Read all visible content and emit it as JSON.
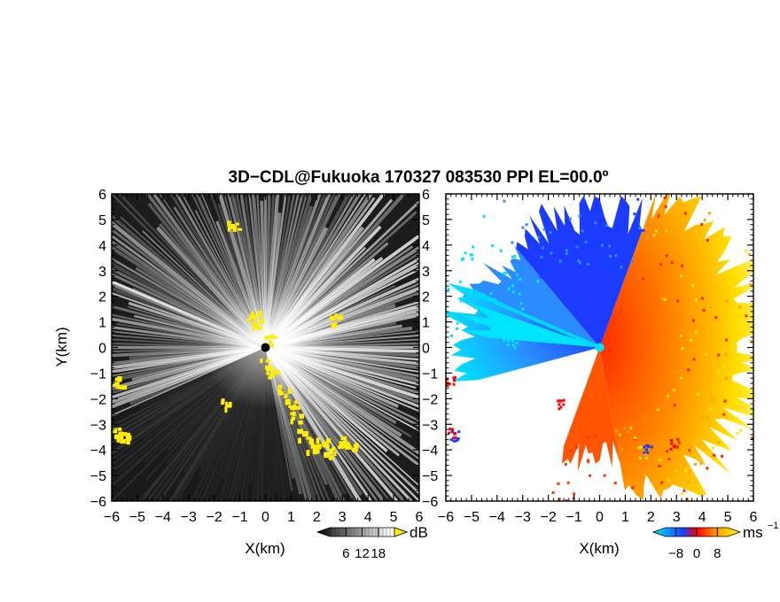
{
  "chart_data": {
    "type": "heatmap",
    "title": "3D−CDL@Fukuoka 170327 083530 PPI EL=00.0º",
    "panels": [
      {
        "id": "reflectivity",
        "xlabel": "X(km)",
        "ylabel": "Y(km)",
        "xlim": [
          -6,
          6
        ],
        "ylim": [
          -6,
          6
        ],
        "xticks": [
          "−6",
          "−5",
          "−4",
          "−3",
          "−2",
          "−1",
          "0",
          "1",
          "2",
          "3",
          "4",
          "5",
          "6"
        ],
        "yticks": [
          "6",
          "5",
          "4",
          "3",
          "2",
          "1",
          "0",
          "−1",
          "−2",
          "−3",
          "−4",
          "−5",
          "−6"
        ],
        "colorbar": {
          "unit": "dB",
          "ticks": [
            "6",
            "12",
            "18"
          ],
          "tick_values": [
            6,
            12,
            18
          ],
          "range": [
            0,
            24
          ],
          "colors": [
            "#000000",
            "#ffffff",
            "#ffee00"
          ]
        }
      },
      {
        "id": "doppler-velocity",
        "xlabel": "X(km)",
        "ylabel": "",
        "xlim": [
          -6,
          6
        ],
        "ylim": [
          -6,
          6
        ],
        "xticks": [
          "−6",
          "−5",
          "−4",
          "−3",
          "−2",
          "−1",
          "0",
          "1",
          "2",
          "3",
          "4",
          "5",
          "6"
        ],
        "yticks": [
          "6",
          "5",
          "4",
          "3",
          "2",
          "1",
          "0",
          "−1",
          "−2",
          "−3",
          "−4",
          "−5",
          "−6"
        ],
        "colorbar": {
          "unit": "ms",
          "unit_exponent": "−1",
          "ticks": [
            "−8",
            "0",
            "8"
          ],
          "tick_values": [
            -8,
            0,
            8
          ],
          "range": [
            -12,
            12
          ],
          "colors": [
            "#00e5ff",
            "#1b3cff",
            "#ff0000",
            "#ffa500",
            "#ffff00"
          ]
        }
      }
    ]
  }
}
